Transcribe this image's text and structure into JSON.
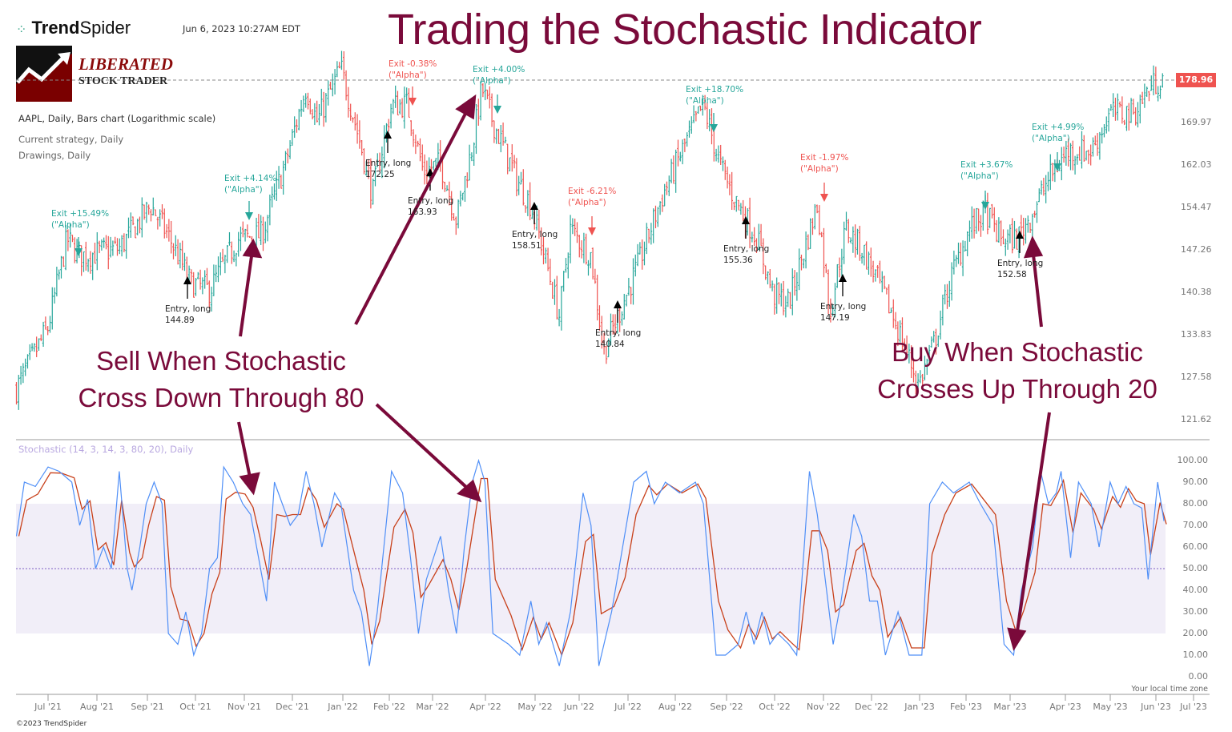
{
  "header": {
    "brand_bold": "Trend",
    "brand_light": "Spider",
    "datetime": "Jun 6, 2023 10:27AM EDT",
    "logo_line1": "LIBERATED",
    "logo_line2": "STOCK TRADER",
    "symbol_info": "AAPL, Daily, Bars chart (Logarithmic scale)",
    "strategy": "Current strategy, Daily",
    "drawings": "Drawings, Daily"
  },
  "title": "Trading the Stochastic Indicator",
  "annotations": {
    "sell_line1": "Sell When Stochastic",
    "sell_line2": "Cross Down Through 80",
    "buy_line1": "Buy When Stochastic",
    "buy_line2": "Crosses Up Through 20",
    "arrow_color": "#7a0a3a"
  },
  "trades": {
    "entries": [
      {
        "label": "Entry, long",
        "price": "144.89"
      },
      {
        "label": "Entry, long",
        "price": "172.25"
      },
      {
        "label": "Entry, long",
        "price": "163.93"
      },
      {
        "label": "Entry, long",
        "price": "158.51"
      },
      {
        "label": "Entry, long",
        "price": "140.84"
      },
      {
        "label": "Entry, long",
        "price": "155.36"
      },
      {
        "label": "Entry, long",
        "price": "147.19"
      },
      {
        "label": "Entry, long",
        "price": "152.58"
      }
    ],
    "exits": [
      {
        "label": "Exit +15.49%",
        "tag": "(\"Alpha\")",
        "result": "gain"
      },
      {
        "label": "Exit +4.14%",
        "tag": "(\"Alpha\")",
        "result": "gain"
      },
      {
        "label": "Exit -0.38%",
        "tag": "(\"Alpha\")",
        "result": "loss"
      },
      {
        "label": "Exit +4.00%",
        "tag": "(\"Alpha\")",
        "result": "gain"
      },
      {
        "label": "Exit -6.21%",
        "tag": "(\"Alpha\")",
        "result": "loss"
      },
      {
        "label": "Exit +18.70%",
        "tag": "(\"Alpha\")",
        "result": "gain"
      },
      {
        "label": "Exit -1.97%",
        "tag": "(\"Alpha\")",
        "result": "loss"
      },
      {
        "label": "Exit +3.67%",
        "tag": "(\"Alpha\")",
        "result": "gain"
      },
      {
        "label": "Exit +4.99%",
        "tag": "(\"Alpha\")",
        "result": "gain"
      }
    ]
  },
  "chart_data": [
    {
      "type": "bar",
      "subtype": "ohlc",
      "scale": "log",
      "last_price": "178.96",
      "y_ticks": [
        "178.96",
        "169.97",
        "162.03",
        "154.47",
        "147.26",
        "140.38",
        "133.83",
        "127.58",
        "121.62"
      ],
      "ylim": [
        121.62,
        178.96
      ],
      "colors": {
        "up": "#26a69a",
        "down": "#ef5350",
        "last_price": "#ef5350"
      },
      "approx_close": [
        [
          "2021-06-11",
          125.7
        ],
        [
          "2021-07-01",
          134.7
        ],
        [
          "2021-07-13",
          148.9
        ],
        [
          "2021-07-21",
          146.0
        ],
        [
          "2021-08-15",
          147.3
        ],
        [
          "2021-09-04",
          154.6
        ],
        [
          "2021-09-16",
          148.9
        ],
        [
          "2021-09-29",
          141.7
        ],
        [
          "2021-10-11",
          140.5
        ],
        [
          "2021-10-29",
          148.9
        ],
        [
          "2021-11-13",
          149.6
        ],
        [
          "2021-11-28",
          162.2
        ],
        [
          "2021-12-11",
          176.6
        ],
        [
          "2021-12-18",
          170.0
        ],
        [
          "2022-01-02",
          180.6
        ],
        [
          "2022-01-12",
          168.5
        ],
        [
          "2022-01-22",
          156.5
        ],
        [
          "2022-02-03",
          173.2
        ],
        [
          "2022-02-13",
          173.2
        ],
        [
          "2022-02-23",
          160.7
        ],
        [
          "2022-03-06",
          162.2
        ],
        [
          "2022-03-16",
          152.1
        ],
        [
          "2022-03-26",
          165.2
        ],
        [
          "2022-04-01",
          176.6
        ],
        [
          "2022-04-08",
          170.0
        ],
        [
          "2022-04-23",
          159.3
        ],
        [
          "2022-05-02",
          154.8
        ],
        [
          "2022-05-12",
          144.7
        ],
        [
          "2022-05-20",
          136.4
        ],
        [
          "2022-05-27",
          150.6
        ],
        [
          "2022-06-09",
          146.1
        ],
        [
          "2022-06-17",
          131.0
        ],
        [
          "2022-06-27",
          137.1
        ],
        [
          "2022-07-09",
          144.7
        ],
        [
          "2022-07-24",
          156.2
        ],
        [
          "2022-08-09",
          166.7
        ],
        [
          "2022-08-19",
          173.2
        ],
        [
          "2022-08-29",
          162.2
        ],
        [
          "2022-09-07",
          156.2
        ],
        [
          "2022-09-22",
          148.9
        ],
        [
          "2022-10-02",
          139.8
        ],
        [
          "2022-10-12",
          138.5
        ],
        [
          "2022-10-22",
          147.3
        ],
        [
          "2022-10-30",
          154.8
        ],
        [
          "2022-11-07",
          137.1
        ],
        [
          "2022-11-17",
          150.6
        ],
        [
          "2022-11-27",
          147.3
        ],
        [
          "2022-12-07",
          142.2
        ],
        [
          "2022-12-17",
          136.4
        ],
        [
          "2023-01-02",
          126.3
        ],
        [
          "2023-01-12",
          132.5
        ],
        [
          "2023-01-22",
          142.2
        ],
        [
          "2023-02-03",
          150.6
        ],
        [
          "2023-02-13",
          153.4
        ],
        [
          "2023-02-23",
          148.9
        ],
        [
          "2023-03-05",
          148.9
        ],
        [
          "2023-03-15",
          153.4
        ],
        [
          "2023-03-25",
          159.3
        ],
        [
          "2023-04-06",
          164.4
        ],
        [
          "2023-04-21",
          164.4
        ],
        [
          "2023-05-03",
          171.7
        ],
        [
          "2023-05-18",
          171.7
        ],
        [
          "2023-05-28",
          176.6
        ],
        [
          "2023-06-06",
          178.96
        ]
      ]
    },
    {
      "type": "line",
      "title": "Stochastic (14, 3, 14, 3, 80, 20), Daily",
      "ylim": [
        0,
        100
      ],
      "y_ticks": [
        "100.00",
        "90.00",
        "80.00",
        "70.00",
        "60.00",
        "50.00",
        "40.00",
        "30.00",
        "20.00",
        "10.00",
        "0.00"
      ],
      "bands": {
        "upper": 80,
        "lower": 20,
        "mid": 50
      },
      "colors": {
        "k": "#4f8ff7",
        "d": "#c8401a",
        "band": "#f1eef8",
        "mid": "#a58fd6"
      },
      "x_ticks": [
        "Jul '21",
        "Aug '21",
        "Sep '21",
        "Oct '21",
        "Nov '21",
        "Dec '21",
        "Jan '22",
        "Feb '22",
        "Mar '22",
        "Apr '22",
        "May '22",
        "Jun '22",
        "Jul '22",
        "Aug '22",
        "Sep '22",
        "Oct '22",
        "Nov '22",
        "Dec '22",
        "Jan '23",
        "Feb '23",
        "Mar '23",
        "Apr '23",
        "May '23",
        "Jun '23",
        "Jul '23"
      ],
      "k": [
        [
          "2021-06-11",
          65
        ],
        [
          "2021-06-16",
          90
        ],
        [
          "2021-06-23",
          88
        ],
        [
          "2021-07-01",
          97
        ],
        [
          "2021-07-08",
          95
        ],
        [
          "2021-07-16",
          90
        ],
        [
          "2021-07-21",
          70
        ],
        [
          "2021-07-26",
          82
        ],
        [
          "2021-07-31",
          50
        ],
        [
          "2021-08-05",
          60
        ],
        [
          "2021-08-10",
          50
        ],
        [
          "2021-08-15",
          95
        ],
        [
          "2021-08-20",
          50
        ],
        [
          "2021-08-23",
          40
        ],
        [
          "2021-08-28",
          60
        ],
        [
          "2021-09-01",
          80
        ],
        [
          "2021-09-06",
          90
        ],
        [
          "2021-09-11",
          80
        ],
        [
          "2021-09-15",
          20
        ],
        [
          "2021-09-21",
          15
        ],
        [
          "2021-09-26",
          30
        ],
        [
          "2021-10-01",
          10
        ],
        [
          "2021-10-06",
          20
        ],
        [
          "2021-10-11",
          50
        ],
        [
          "2021-10-16",
          55
        ],
        [
          "2021-10-20",
          97
        ],
        [
          "2021-10-26",
          90
        ],
        [
          "2021-11-01",
          80
        ],
        [
          "2021-11-06",
          75
        ],
        [
          "2021-11-11",
          55
        ],
        [
          "2021-11-16",
          35
        ],
        [
          "2021-11-21",
          90
        ],
        [
          "2021-11-26",
          80
        ],
        [
          "2021-12-01",
          70
        ],
        [
          "2021-12-06",
          75
        ],
        [
          "2021-12-11",
          95
        ],
        [
          "2021-12-16",
          80
        ],
        [
          "2021-12-21",
          60
        ],
        [
          "2021-12-29",
          85
        ],
        [
          "2022-01-02",
          80
        ],
        [
          "2022-01-10",
          40
        ],
        [
          "2022-01-15",
          30
        ],
        [
          "2022-01-20",
          5
        ],
        [
          "2022-01-25",
          30
        ],
        [
          "2022-02-03",
          95
        ],
        [
          "2022-02-10",
          85
        ],
        [
          "2022-02-15",
          55
        ],
        [
          "2022-02-20",
          20
        ],
        [
          "2022-02-25",
          45
        ],
        [
          "2022-03-06",
          65
        ],
        [
          "2022-03-11",
          40
        ],
        [
          "2022-03-16",
          20
        ],
        [
          "2022-03-21",
          60
        ],
        [
          "2022-03-26",
          90
        ],
        [
          "2022-03-30",
          100
        ],
        [
          "2022-04-03",
          90
        ],
        [
          "2022-04-08",
          20
        ],
        [
          "2022-04-18",
          15
        ],
        [
          "2022-04-25",
          10
        ],
        [
          "2022-05-02",
          35
        ],
        [
          "2022-05-07",
          15
        ],
        [
          "2022-05-12",
          25
        ],
        [
          "2022-05-20",
          5
        ],
        [
          "2022-05-27",
          30
        ],
        [
          "2022-06-04",
          85
        ],
        [
          "2022-06-09",
          70
        ],
        [
          "2022-06-14",
          5
        ],
        [
          "2022-06-22",
          30
        ],
        [
          "2022-06-29",
          60
        ],
        [
          "2022-07-06",
          90
        ],
        [
          "2022-07-14",
          95
        ],
        [
          "2022-07-19",
          80
        ],
        [
          "2022-07-26",
          90
        ],
        [
          "2022-08-04",
          85
        ],
        [
          "2022-08-14",
          90
        ],
        [
          "2022-08-19",
          80
        ],
        [
          "2022-08-27",
          10
        ],
        [
          "2022-09-02",
          10
        ],
        [
          "2022-09-10",
          15
        ],
        [
          "2022-09-15",
          30
        ],
        [
          "2022-09-20",
          15
        ],
        [
          "2022-09-25",
          30
        ],
        [
          "2022-09-30",
          15
        ],
        [
          "2022-10-05",
          20
        ],
        [
          "2022-10-12",
          15
        ],
        [
          "2022-10-17",
          10
        ],
        [
          "2022-10-25",
          95
        ],
        [
          "2022-10-30",
          75
        ],
        [
          "2022-11-04",
          45
        ],
        [
          "2022-11-09",
          15
        ],
        [
          "2022-11-14",
          35
        ],
        [
          "2022-11-22",
          75
        ],
        [
          "2022-11-27",
          65
        ],
        [
          "2022-12-02",
          35
        ],
        [
          "2022-12-07",
          35
        ],
        [
          "2022-12-12",
          10
        ],
        [
          "2022-12-20",
          30
        ],
        [
          "2022-12-27",
          10
        ],
        [
          "2023-01-04",
          10
        ],
        [
          "2023-01-09",
          80
        ],
        [
          "2023-01-17",
          90
        ],
        [
          "2023-01-24",
          85
        ],
        [
          "2023-02-03",
          90
        ],
        [
          "2023-02-10",
          80
        ],
        [
          "2023-02-18",
          70
        ],
        [
          "2023-02-25",
          15
        ],
        [
          "2023-03-03",
          10
        ],
        [
          "2023-03-08",
          40
        ],
        [
          "2023-03-15",
          60
        ],
        [
          "2023-03-20",
          95
        ],
        [
          "2023-03-25",
          80
        ],
        [
          "2023-03-30",
          85
        ],
        [
          "2023-04-02",
          95
        ],
        [
          "2023-04-08",
          55
        ],
        [
          "2023-04-13",
          90
        ],
        [
          "2023-04-21",
          80
        ],
        [
          "2023-04-26",
          60
        ],
        [
          "2023-05-03",
          90
        ],
        [
          "2023-05-08",
          80
        ],
        [
          "2023-05-13",
          88
        ],
        [
          "2023-05-18",
          80
        ],
        [
          "2023-05-23",
          78
        ],
        [
          "2023-05-27",
          45
        ],
        [
          "2023-06-02",
          90
        ],
        [
          "2023-06-06",
          72
        ]
      ]
    }
  ],
  "footer": {
    "timezone": "Your local time zone",
    "copyright": "©2023 TrendSpider"
  }
}
